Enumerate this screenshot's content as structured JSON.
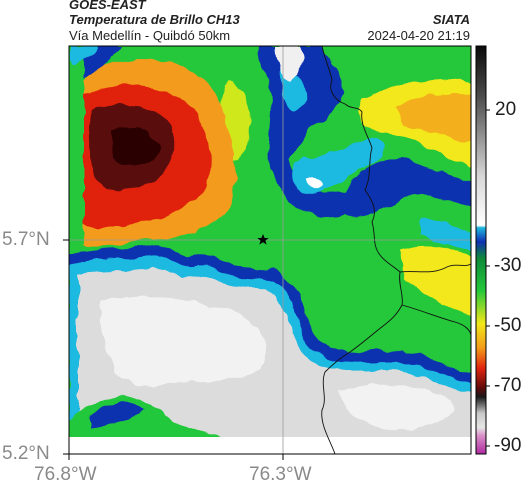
{
  "header": {
    "title_line1": "GOES-EAST",
    "title_line2": "Temperatura de Brillo CH13",
    "subtitle": "Vía Medellín - Quibdó 50km",
    "brand": "SIATA",
    "datetime": "2024-04-20 21:19"
  },
  "axes": {
    "x_ticks": [
      "76.8°W",
      "76.3°W"
    ],
    "y_ticks": [
      "5.7°N",
      "5.2°N"
    ],
    "grid": true
  },
  "colorbar": {
    "ticks": [
      "20",
      "-30",
      "-50",
      "-70",
      "-90"
    ],
    "colors": {
      "very_warm": "#1a1a1a",
      "warm": "#9a9a9a",
      "mild": "#e6e6e6",
      "cyan": "#1fb9e0",
      "blue": "#1030b0",
      "green": "#24c83a",
      "yellow": "#f2e81a",
      "orange": "#f39b1a",
      "red": "#e02410",
      "dark_red": "#5a0a0a",
      "magenta": "#b02aa0"
    }
  },
  "map": {
    "marker": "star-marker",
    "marker_label": ""
  }
}
